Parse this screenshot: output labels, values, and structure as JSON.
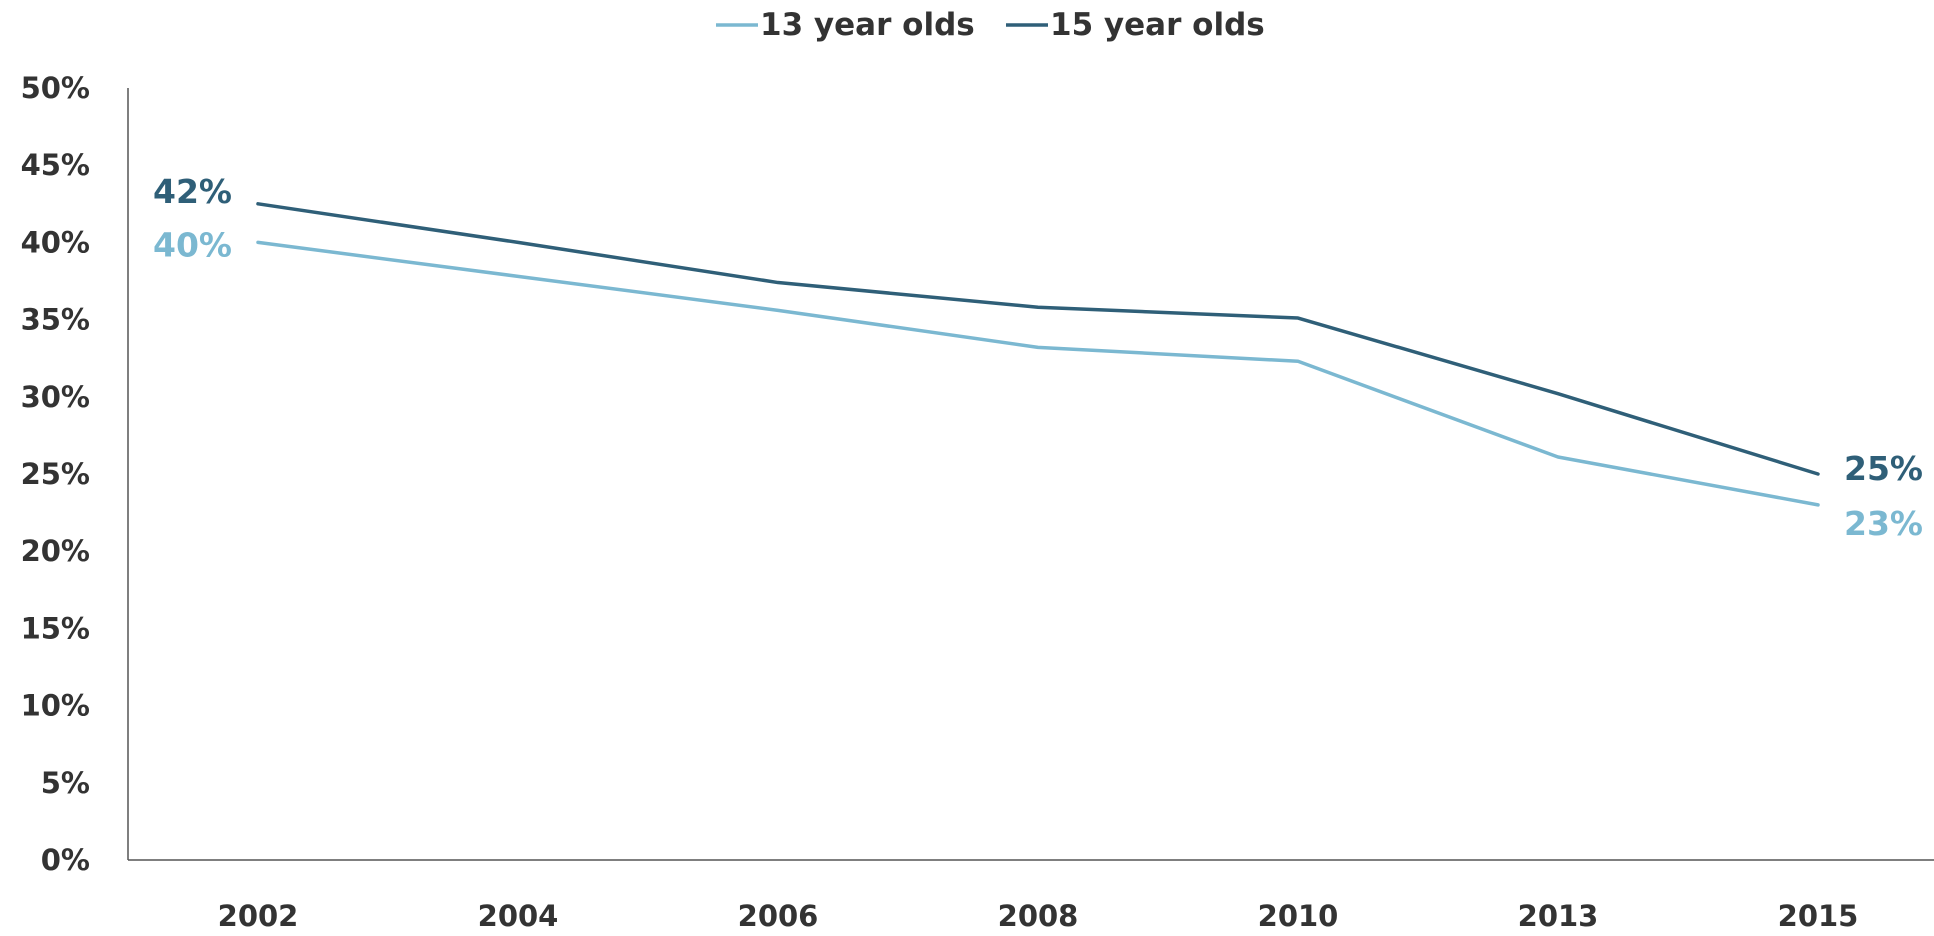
{
  "chart_data": {
    "type": "line",
    "categories": [
      "2002",
      "2004",
      "2006",
      "2008",
      "2010",
      "2013",
      "2015"
    ],
    "series": [
      {
        "name": "13 year olds",
        "color": "#7bb8d1",
        "values": [
          40,
          37.8,
          35.6,
          33.2,
          32.3,
          26.1,
          23
        ]
      },
      {
        "name": "15 year olds",
        "color": "#2f5f78",
        "values": [
          42.5,
          40.0,
          37.4,
          35.8,
          35.1,
          30.2,
          25
        ]
      }
    ],
    "ylim": [
      0,
      50
    ],
    "yticks": [
      0,
      5,
      10,
      15,
      20,
      25,
      30,
      35,
      40,
      45,
      50
    ],
    "ytick_format": "percent",
    "grid": false,
    "legend_position": "top-center",
    "data_labels": [
      {
        "series": "15 year olds",
        "category": "2002",
        "text": "42%"
      },
      {
        "series": "13 year olds",
        "category": "2002",
        "text": "40%"
      },
      {
        "series": "15 year olds",
        "category": "2015",
        "text": "25%"
      },
      {
        "series": "13 year olds",
        "category": "2015",
        "text": "23%"
      }
    ],
    "title": "",
    "xlabel": "",
    "ylabel": ""
  }
}
